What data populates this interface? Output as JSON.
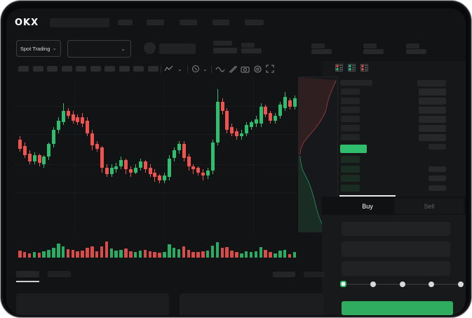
{
  "header": {
    "logo": "OKX",
    "nav_placeholder_count": 5
  },
  "controls": {
    "market_selector_label": "Spot Trading",
    "chevron": "⌄"
  },
  "toolbar": {
    "placeholder_count": 10,
    "icons": [
      "candle-type",
      "chevron-down",
      "indicators",
      "chevron-down",
      "wave",
      "ruler",
      "camera",
      "settings",
      "fullscreen"
    ]
  },
  "orderbook": {
    "layout_icons": [
      "book-all",
      "book-bids",
      "book-asks"
    ],
    "ask_rows": 6,
    "bid_rows": 4
  },
  "trade_panel": {
    "buy_label": "Buy",
    "sell_label": "Sell",
    "slider": {
      "stops": [
        0,
        25,
        50,
        75,
        100
      ],
      "selected": 0
    }
  },
  "colors": {
    "green": "#2FBE6E",
    "red": "#EF5350",
    "button_green": "#2FAC5F",
    "price_highlight": "#2FBE6E"
  },
  "chart_data": {
    "type": "candlestick",
    "title": "",
    "xlabel": "",
    "ylabel": "",
    "ylim": [
      0,
      100
    ],
    "grid": true,
    "candles_ohlc": [
      [
        60,
        62,
        52,
        54
      ],
      [
        56,
        58,
        48,
        50
      ],
      [
        51,
        53,
        44,
        46
      ],
      [
        46,
        52,
        44,
        50
      ],
      [
        50,
        51,
        43,
        45
      ],
      [
        44,
        50,
        42,
        49
      ],
      [
        49,
        58,
        47,
        57
      ],
      [
        57,
        68,
        55,
        66
      ],
      [
        66,
        74,
        64,
        72
      ],
      [
        71,
        83,
        69,
        78
      ],
      [
        78,
        80,
        73,
        75
      ],
      [
        76,
        78,
        70,
        72
      ],
      [
        74,
        76,
        69,
        71
      ],
      [
        74,
        77,
        68,
        70
      ],
      [
        72,
        74,
        62,
        64
      ],
      [
        64,
        66,
        53,
        56
      ],
      [
        57,
        59,
        52,
        54
      ],
      [
        55,
        56,
        39,
        42
      ],
      [
        42,
        44,
        36,
        38
      ],
      [
        38,
        44,
        36,
        42
      ],
      [
        41,
        45,
        39,
        43
      ],
      [
        43,
        49,
        41,
        47
      ],
      [
        47,
        48,
        38,
        41
      ],
      [
        41,
        43,
        36,
        39
      ],
      [
        39,
        44,
        38,
        42
      ],
      [
        42,
        48,
        40,
        46
      ],
      [
        46,
        47,
        39,
        41
      ],
      [
        42,
        44,
        36,
        38
      ],
      [
        39,
        41,
        33,
        36
      ],
      [
        37,
        38,
        32,
        34
      ],
      [
        34,
        39,
        32,
        37
      ],
      [
        36,
        50,
        34,
        48
      ],
      [
        48,
        55,
        46,
        53
      ],
      [
        53,
        59,
        51,
        57
      ],
      [
        57,
        59,
        46,
        48
      ],
      [
        49,
        51,
        40,
        43
      ],
      [
        43,
        44,
        38,
        41
      ],
      [
        42,
        43,
        37,
        39
      ],
      [
        39,
        41,
        34,
        37
      ],
      [
        37,
        42,
        35,
        40
      ],
      [
        40,
        60,
        38,
        58
      ],
      [
        58,
        92,
        56,
        84
      ],
      [
        84,
        86,
        76,
        78
      ],
      [
        78,
        80,
        64,
        66
      ],
      [
        68,
        70,
        62,
        64
      ],
      [
        65,
        67,
        60,
        62
      ],
      [
        62,
        66,
        60,
        64
      ],
      [
        64,
        71,
        62,
        69
      ],
      [
        68,
        72,
        66,
        71
      ],
      [
        70,
        75,
        68,
        73
      ],
      [
        70,
        83,
        68,
        81
      ],
      [
        81,
        82,
        74,
        76
      ],
      [
        77,
        78,
        70,
        72
      ],
      [
        72,
        77,
        70,
        75
      ],
      [
        75,
        84,
        73,
        82
      ],
      [
        80,
        90,
        78,
        87
      ],
      [
        85,
        86,
        79,
        81
      ],
      [
        81,
        88,
        79,
        86
      ]
    ],
    "volumes": [
      38,
      30,
      24,
      30,
      26,
      32,
      40,
      52,
      75,
      58,
      44,
      40,
      34,
      38,
      52,
      58,
      32,
      60,
      85,
      48,
      36,
      40,
      50,
      34,
      30,
      36,
      42,
      34,
      30,
      26,
      30,
      70,
      52,
      46,
      58,
      42,
      30,
      28,
      34,
      36,
      62,
      80,
      52,
      56,
      36,
      30,
      24,
      34,
      30,
      32,
      55,
      42,
      28,
      24,
      38,
      42,
      18,
      30
    ],
    "depth": {
      "asks": [
        [
          0.97,
          0.02
        ],
        [
          0.88,
          0.07
        ],
        [
          0.8,
          0.12
        ],
        [
          0.74,
          0.17
        ],
        [
          0.7,
          0.22
        ],
        [
          0.62,
          0.26
        ],
        [
          0.52,
          0.3
        ],
        [
          0.4,
          0.34
        ],
        [
          0.26,
          0.38
        ],
        [
          0.13,
          0.42
        ],
        [
          0.06,
          0.46
        ],
        [
          0.03,
          0.5
        ]
      ],
      "bids": [
        [
          0.03,
          0.51
        ],
        [
          0.05,
          0.55
        ],
        [
          0.1,
          0.6
        ],
        [
          0.18,
          0.64
        ],
        [
          0.26,
          0.68
        ],
        [
          0.33,
          0.73
        ],
        [
          0.4,
          0.79
        ],
        [
          0.46,
          0.85
        ],
        [
          0.52,
          0.9
        ],
        [
          0.6,
          0.95
        ],
        [
          0.68,
          0.98
        ],
        [
          0.78,
          1.0
        ]
      ]
    }
  }
}
